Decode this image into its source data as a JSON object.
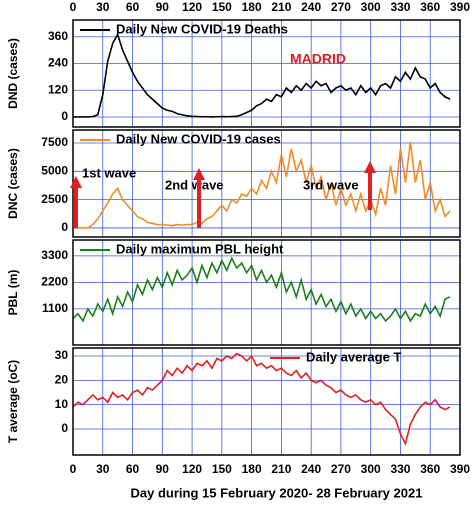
{
  "chart_data": [
    {
      "type": "line",
      "ylabel": "DND (cases)",
      "annotations": [
        "MADRID"
      ],
      "xlim": [
        0,
        390
      ],
      "xticks": [
        0,
        30,
        60,
        90,
        120,
        150,
        180,
        210,
        240,
        270,
        300,
        330,
        360,
        390
      ],
      "ylim": [
        -45,
        435
      ],
      "yticks": [
        0,
        120,
        240,
        360
      ],
      "grid": true,
      "x": [
        0,
        5,
        10,
        15,
        20,
        25,
        30,
        35,
        40,
        45,
        50,
        55,
        60,
        65,
        70,
        75,
        80,
        85,
        90,
        95,
        100,
        105,
        110,
        115,
        120,
        125,
        130,
        135,
        140,
        145,
        150,
        155,
        160,
        165,
        170,
        175,
        180,
        185,
        190,
        195,
        200,
        205,
        210,
        215,
        220,
        225,
        230,
        235,
        240,
        245,
        250,
        255,
        260,
        265,
        270,
        275,
        280,
        285,
        290,
        295,
        300,
        305,
        310,
        315,
        320,
        325,
        330,
        335,
        340,
        345,
        350,
        355,
        360,
        365,
        370,
        375,
        380
      ],
      "series": [
        {
          "name": "Daily New COVID-19 Deaths",
          "color": "#000000",
          "values": [
            0,
            0,
            0,
            0,
            2,
            10,
            100,
            250,
            330,
            370,
            300,
            250,
            200,
            160,
            130,
            100,
            80,
            60,
            40,
            30,
            25,
            15,
            10,
            5,
            3,
            2,
            1,
            1,
            0,
            1,
            2,
            1,
            2,
            3,
            10,
            20,
            30,
            50,
            60,
            80,
            70,
            100,
            90,
            130,
            110,
            140,
            120,
            150,
            130,
            160,
            140,
            150,
            110,
            130,
            140,
            120,
            130,
            100,
            140,
            110,
            130,
            100,
            140,
            150,
            130,
            180,
            160,
            200,
            170,
            220,
            180,
            170,
            130,
            150,
            110,
            90,
            80
          ]
        }
      ]
    },
    {
      "type": "line",
      "ylabel": "DNC (cases)",
      "annotations": [
        "1st wave",
        "2nd wave",
        "3rd wave"
      ],
      "xlim": [
        0,
        390
      ],
      "xticks": [
        0,
        30,
        60,
        90,
        120,
        150,
        180,
        210,
        240,
        270,
        300,
        330,
        360,
        390
      ],
      "ylim": [
        -800,
        8650
      ],
      "yticks": [
        0,
        2500,
        5000,
        7500
      ],
      "grid": true,
      "x": [
        0,
        5,
        10,
        15,
        20,
        25,
        30,
        35,
        40,
        45,
        50,
        55,
        60,
        65,
        70,
        75,
        80,
        85,
        90,
        95,
        100,
        105,
        110,
        115,
        120,
        125,
        130,
        135,
        140,
        145,
        150,
        155,
        160,
        165,
        170,
        175,
        180,
        185,
        190,
        195,
        200,
        205,
        210,
        215,
        220,
        225,
        230,
        235,
        240,
        245,
        250,
        255,
        260,
        265,
        270,
        275,
        280,
        285,
        290,
        295,
        300,
        305,
        310,
        315,
        320,
        325,
        330,
        335,
        340,
        345,
        350,
        355,
        360,
        365,
        370,
        375,
        380
      ],
      "series": [
        {
          "name": "Daily New COVID-19 cases",
          "color": "#f28c28",
          "values": [
            0,
            0,
            0,
            0,
            300,
            800,
            1500,
            2200,
            3000,
            3500,
            2500,
            2000,
            1500,
            1000,
            800,
            500,
            400,
            300,
            300,
            250,
            200,
            300,
            250,
            300,
            300,
            500,
            400,
            800,
            1000,
            1500,
            2000,
            1500,
            2500,
            2200,
            3000,
            2800,
            3500,
            3000,
            4200,
            3500,
            5000,
            4000,
            6500,
            4500,
            7000,
            5000,
            6000,
            4000,
            5500,
            3500,
            4500,
            2500,
            4000,
            2000,
            3500,
            2000,
            3000,
            1500,
            3000,
            1500,
            2500,
            1200,
            3500,
            2000,
            5500,
            3000,
            7000,
            4000,
            7600,
            4000,
            6000,
            2500,
            4000,
            1500,
            2500,
            1000,
            1500
          ]
        }
      ]
    },
    {
      "type": "line",
      "ylabel": "PBL (m)",
      "xlim": [
        0,
        390
      ],
      "xticks": [
        0,
        30,
        60,
        90,
        120,
        150,
        180,
        210,
        240,
        270,
        300,
        330,
        360,
        390
      ],
      "ylim": [
        -400,
        3960
      ],
      "yticks": [
        1100,
        2200,
        3300
      ],
      "grid": true,
      "x": [
        0,
        5,
        10,
        15,
        20,
        25,
        30,
        35,
        40,
        45,
        50,
        55,
        60,
        65,
        70,
        75,
        80,
        85,
        90,
        95,
        100,
        105,
        110,
        115,
        120,
        125,
        130,
        135,
        140,
        145,
        150,
        155,
        160,
        165,
        170,
        175,
        180,
        185,
        190,
        195,
        200,
        205,
        210,
        215,
        220,
        225,
        230,
        235,
        240,
        245,
        250,
        255,
        260,
        265,
        270,
        275,
        280,
        285,
        290,
        295,
        300,
        305,
        310,
        315,
        320,
        325,
        330,
        335,
        340,
        345,
        350,
        355,
        360,
        365,
        370,
        375,
        380
      ],
      "series": [
        {
          "name": "Daily maximum PBL height",
          "color": "#1a801a",
          "values": [
            700,
            900,
            600,
            1100,
            800,
            1300,
            1000,
            1500,
            900,
            1600,
            1200,
            1800,
            1400,
            2100,
            1700,
            2300,
            1900,
            2400,
            2000,
            2600,
            2100,
            2700,
            2300,
            2500,
            2800,
            2200,
            2900,
            2400,
            3000,
            2600,
            3100,
            2700,
            3200,
            2800,
            3000,
            2600,
            2900,
            2300,
            2700,
            2200,
            2500,
            2000,
            2600,
            1800,
            2200,
            1600,
            2300,
            1500,
            1900,
            1300,
            1700,
            1200,
            1500,
            1000,
            1400,
            900,
            1300,
            800,
            1100,
            700,
            1000,
            700,
            900,
            600,
            800,
            1100,
            700,
            1000,
            600,
            900,
            800,
            1300,
            900,
            1200,
            800,
            1500,
            1600
          ]
        }
      ]
    },
    {
      "type": "line",
      "ylabel": "T average (oC)",
      "xlabel": "Day during 15 February 2020- 28 February 2021",
      "xlim": [
        0,
        390
      ],
      "xticks": [
        0,
        30,
        60,
        90,
        120,
        150,
        180,
        210,
        240,
        270,
        300,
        330,
        360,
        390
      ],
      "ylim": [
        -10.7,
        33.3
      ],
      "yticks": [
        0,
        10,
        20,
        30
      ],
      "grid": true,
      "x": [
        0,
        5,
        10,
        15,
        20,
        25,
        30,
        35,
        40,
        45,
        50,
        55,
        60,
        65,
        70,
        75,
        80,
        85,
        90,
        95,
        100,
        105,
        110,
        115,
        120,
        125,
        130,
        135,
        140,
        145,
        150,
        155,
        160,
        165,
        170,
        175,
        180,
        185,
        190,
        195,
        200,
        205,
        210,
        215,
        220,
        225,
        230,
        235,
        240,
        245,
        250,
        255,
        260,
        265,
        270,
        275,
        280,
        285,
        290,
        295,
        300,
        305,
        310,
        315,
        320,
        325,
        330,
        335,
        340,
        345,
        350,
        355,
        360,
        365,
        370,
        375,
        380
      ],
      "series": [
        {
          "name": "Daily average T",
          "color": "#e02020",
          "values": [
            9,
            11,
            10,
            12,
            14,
            12,
            13,
            11,
            15,
            13,
            14,
            12,
            15,
            16,
            14,
            17,
            16,
            18,
            20,
            24,
            22,
            25,
            23,
            26,
            24,
            27,
            26,
            28,
            25,
            29,
            28,
            30,
            29,
            31,
            30,
            28,
            30,
            26,
            27,
            25,
            26,
            24,
            25,
            23,
            22,
            24,
            21,
            23,
            20,
            19,
            20,
            18,
            17,
            15,
            16,
            14,
            13,
            14,
            12,
            11,
            12,
            10,
            11,
            8,
            6,
            4,
            -2,
            -6,
            2,
            6,
            9,
            11,
            10,
            12,
            9,
            8,
            9
          ]
        }
      ]
    }
  ]
}
